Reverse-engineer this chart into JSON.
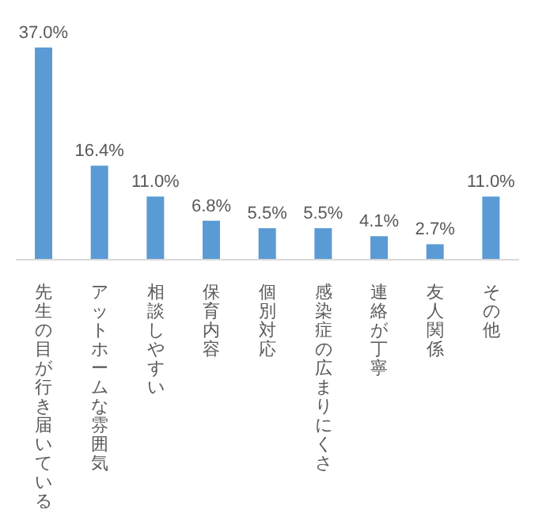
{
  "chart_data": {
    "type": "bar",
    "categories": [
      "先生の目が行き届いている",
      "アットホームな雰囲気",
      "相談しやすい",
      "保育内容",
      "個別対応",
      "感染症の広まりにくさ",
      "連絡が丁寧",
      "友人関係",
      "その他"
    ],
    "values": [
      37.0,
      16.4,
      11.0,
      6.8,
      5.5,
      5.5,
      4.1,
      2.7,
      11.0
    ],
    "value_labels": [
      "37.0%",
      "16.4%",
      "11.0%",
      "6.8%",
      "5.5%",
      "5.5%",
      "4.1%",
      "2.7%",
      "11.0%"
    ],
    "color": "#5b9bd5",
    "grid": false,
    "legend": false
  }
}
